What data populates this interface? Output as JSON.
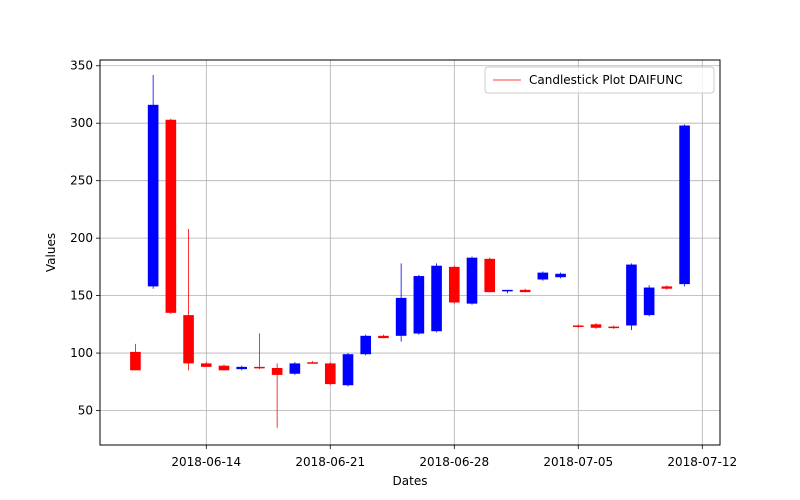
{
  "chart_data": {
    "type": "candlestick",
    "xlabel": "Dates",
    "ylabel": "Values",
    "ylim": [
      20,
      355
    ],
    "xlim": [
      "2018-06-08",
      "2018-07-13"
    ],
    "grid": true,
    "legend": {
      "label": "Candlestick Plot DAIFUNC",
      "placement": "top-right"
    },
    "x_ticks": [
      "2018-06-14",
      "2018-06-21",
      "2018-06-28",
      "2018-07-05",
      "2018-07-12"
    ],
    "y_ticks": [
      50,
      100,
      150,
      200,
      250,
      300,
      350
    ],
    "colors": {
      "up": "#0000ff",
      "down": "#ff0000",
      "wick": "#ff0000",
      "grid": "#b0b0b0"
    },
    "series": [
      {
        "date": "2018-06-10",
        "open": 101,
        "high": 108,
        "low": 85,
        "close": 85
      },
      {
        "date": "2018-06-11",
        "open": 158,
        "high": 342,
        "low": 156,
        "close": 316
      },
      {
        "date": "2018-06-12",
        "open": 303,
        "high": 304,
        "low": 134,
        "close": 135
      },
      {
        "date": "2018-06-13",
        "open": 133,
        "high": 208,
        "low": 85,
        "close": 91
      },
      {
        "date": "2018-06-14",
        "open": 91,
        "high": 92,
        "low": 88,
        "close": 88
      },
      {
        "date": "2018-06-15",
        "open": 89,
        "high": 90,
        "low": 85,
        "close": 85
      },
      {
        "date": "2018-06-16",
        "open": 86,
        "high": 89,
        "low": 85,
        "close": 88
      },
      {
        "date": "2018-06-17",
        "open": 88,
        "high": 117,
        "low": 86,
        "close": 87
      },
      {
        "date": "2018-06-18",
        "open": 87,
        "high": 91,
        "low": 35,
        "close": 81
      },
      {
        "date": "2018-06-19",
        "open": 82,
        "high": 92,
        "low": 81,
        "close": 91
      },
      {
        "date": "2018-06-20",
        "open": 92,
        "high": 93,
        "low": 91,
        "close": 91
      },
      {
        "date": "2018-06-21",
        "open": 91,
        "high": 92,
        "low": 72,
        "close": 73
      },
      {
        "date": "2018-06-22",
        "open": 72,
        "high": 100,
        "low": 71,
        "close": 99
      },
      {
        "date": "2018-06-23",
        "open": 99,
        "high": 116,
        "low": 98,
        "close": 115
      },
      {
        "date": "2018-06-24",
        "open": 115,
        "high": 116,
        "low": 113,
        "close": 113
      },
      {
        "date": "2018-06-25",
        "open": 115,
        "high": 178,
        "low": 110,
        "close": 148
      },
      {
        "date": "2018-06-26",
        "open": 117,
        "high": 168,
        "low": 116,
        "close": 167
      },
      {
        "date": "2018-06-27",
        "open": 119,
        "high": 178,
        "low": 118,
        "close": 176
      },
      {
        "date": "2018-06-28",
        "open": 175,
        "high": 176,
        "low": 143,
        "close": 144
      },
      {
        "date": "2018-06-29",
        "open": 143,
        "high": 184,
        "low": 142,
        "close": 183
      },
      {
        "date": "2018-06-30",
        "open": 182,
        "high": 183,
        "low": 153,
        "close": 153
      },
      {
        "date": "2018-07-01",
        "open": 154,
        "high": 155,
        "low": 152,
        "close": 155
      },
      {
        "date": "2018-07-02",
        "open": 155,
        "high": 156,
        "low": 153,
        "close": 153
      },
      {
        "date": "2018-07-03",
        "open": 164,
        "high": 171,
        "low": 163,
        "close": 170
      },
      {
        "date": "2018-07-04",
        "open": 166,
        "high": 170,
        "low": 165,
        "close": 169
      },
      {
        "date": "2018-07-05",
        "open": 124,
        "high": 125,
        "low": 122,
        "close": 123
      },
      {
        "date": "2018-07-06",
        "open": 125,
        "high": 126,
        "low": 121,
        "close": 122
      },
      {
        "date": "2018-07-07",
        "open": 123,
        "high": 124,
        "low": 121,
        "close": 122
      },
      {
        "date": "2018-07-08",
        "open": 124,
        "high": 178,
        "low": 120,
        "close": 177
      },
      {
        "date": "2018-07-09",
        "open": 133,
        "high": 159,
        "low": 132,
        "close": 157
      },
      {
        "date": "2018-07-10",
        "open": 158,
        "high": 159,
        "low": 155,
        "close": 156
      },
      {
        "date": "2018-07-11",
        "open": 160,
        "high": 299,
        "low": 158,
        "close": 298
      }
    ]
  }
}
